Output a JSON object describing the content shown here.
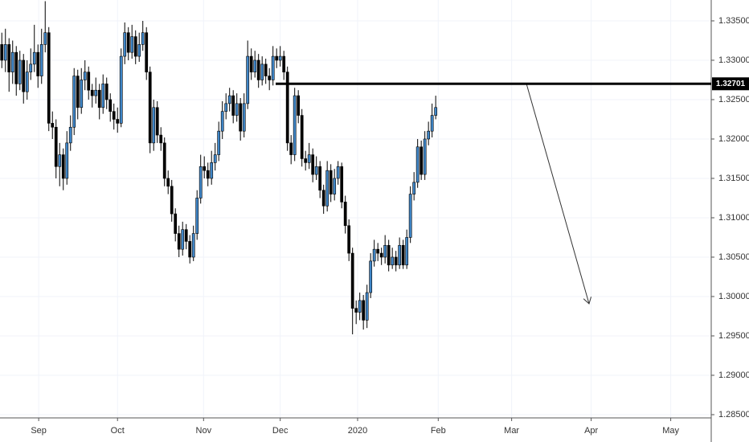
{
  "chart_data": {
    "type": "candlestick",
    "up_color": "#3f85c6",
    "down_color": "#000000",
    "grid": true,
    "xlim": [
      -0.5,
      196.2
    ],
    "ylim": [
      1.28459,
      1.33765
    ],
    "xticks": [
      {
        "value": 10.2,
        "label": "Sep"
      },
      {
        "value": 32,
        "label": "Oct"
      },
      {
        "value": 55.8,
        "label": "Nov"
      },
      {
        "value": 77,
        "label": "Dec"
      },
      {
        "value": 98.4,
        "label": "2020"
      },
      {
        "value": 120.7,
        "label": "Feb"
      },
      {
        "value": 141,
        "label": "Mar"
      },
      {
        "value": 163,
        "label": "Apr"
      },
      {
        "value": 185,
        "label": "May"
      }
    ],
    "yticks": [
      {
        "value": 1.335,
        "label": "1.33500"
      },
      {
        "value": 1.33,
        "label": "1.33000"
      },
      {
        "value": 1.325,
        "label": "1.32500"
      },
      {
        "value": 1.32,
        "label": "1.32000"
      },
      {
        "value": 1.315,
        "label": "1.31500"
      },
      {
        "value": 1.31,
        "label": "1.31000"
      },
      {
        "value": 1.305,
        "label": "1.30500"
      },
      {
        "value": 1.3,
        "label": "1.30000"
      },
      {
        "value": 1.295,
        "label": "1.29500"
      },
      {
        "value": 1.29,
        "label": "1.29000"
      },
      {
        "value": 1.285,
        "label": "1.28500"
      }
    ],
    "price_line": 1.32701,
    "x": [
      0,
      1,
      2,
      3,
      4,
      5,
      6,
      7,
      8,
      9,
      10,
      11,
      12,
      13,
      14,
      15,
      16,
      17,
      18,
      19,
      20,
      21,
      22,
      23,
      24,
      25,
      26,
      27,
      28,
      29,
      30,
      31,
      32,
      33,
      34,
      35,
      36,
      37,
      38,
      39,
      40,
      41,
      42,
      43,
      44,
      45,
      46,
      47,
      48,
      49,
      50,
      51,
      52,
      53,
      54,
      55,
      56,
      57,
      58,
      59,
      60,
      61,
      62,
      63,
      64,
      65,
      66,
      67,
      68,
      69,
      70,
      71,
      72,
      73,
      74,
      75,
      76,
      77,
      78,
      79,
      80,
      81,
      82,
      83,
      84,
      85,
      86,
      87,
      88,
      89,
      90,
      91,
      92,
      93,
      94,
      95,
      96,
      97,
      98,
      99,
      100,
      101,
      102,
      103,
      104,
      105,
      106,
      107,
      108,
      109,
      110,
      111,
      112,
      113,
      114,
      115,
      116,
      117,
      118,
      119,
      120
    ],
    "ohlc": [
      [
        1.332,
        1.3335,
        1.329,
        1.33
      ],
      [
        1.33,
        1.334,
        1.3285,
        1.332
      ],
      [
        1.332,
        1.3328,
        1.326,
        1.3285
      ],
      [
        1.3285,
        1.3325,
        1.327,
        1.331
      ],
      [
        1.331,
        1.3318,
        1.3255,
        1.327
      ],
      [
        1.327,
        1.3312,
        1.3262,
        1.33
      ],
      [
        1.33,
        1.3308,
        1.3245,
        1.326
      ],
      [
        1.326,
        1.33,
        1.325,
        1.3285
      ],
      [
        1.3285,
        1.3315,
        1.3275,
        1.3295
      ],
      [
        1.3295,
        1.3345,
        1.3285,
        1.331
      ],
      [
        1.331,
        1.332,
        1.3265,
        1.328
      ],
      [
        1.328,
        1.334,
        1.327,
        1.332
      ],
      [
        1.332,
        1.3375,
        1.331,
        1.3335
      ],
      [
        1.3335,
        1.3342,
        1.321,
        1.322
      ],
      [
        1.322,
        1.3235,
        1.32,
        1.3215
      ],
      [
        1.3215,
        1.3225,
        1.315,
        1.3165
      ],
      [
        1.3165,
        1.3195,
        1.314,
        1.318
      ],
      [
        1.318,
        1.3188,
        1.3135,
        1.315
      ],
      [
        1.315,
        1.321,
        1.3142,
        1.3195
      ],
      [
        1.3195,
        1.323,
        1.3185,
        1.3215
      ],
      [
        1.3215,
        1.329,
        1.3205,
        1.328
      ],
      [
        1.328,
        1.3288,
        1.3225,
        1.324
      ],
      [
        1.324,
        1.329,
        1.3232,
        1.3275
      ],
      [
        1.3275,
        1.33,
        1.3262,
        1.3285
      ],
      [
        1.3285,
        1.3292,
        1.325,
        1.3262
      ],
      [
        1.3262,
        1.327,
        1.324,
        1.3255
      ],
      [
        1.3255,
        1.3278,
        1.3245,
        1.3262
      ],
      [
        1.3262,
        1.327,
        1.3225,
        1.324
      ],
      [
        1.324,
        1.3282,
        1.3232,
        1.327
      ],
      [
        1.327,
        1.3278,
        1.3238,
        1.325
      ],
      [
        1.325,
        1.3258,
        1.3222,
        1.3235
      ],
      [
        1.3235,
        1.3245,
        1.3212,
        1.3225
      ],
      [
        1.3225,
        1.324,
        1.3208,
        1.322
      ],
      [
        1.322,
        1.3315,
        1.3215,
        1.3305
      ],
      [
        1.3305,
        1.3348,
        1.3295,
        1.3335
      ],
      [
        1.3335,
        1.3342,
        1.33,
        1.331
      ],
      [
        1.331,
        1.3345,
        1.3302,
        1.333
      ],
      [
        1.333,
        1.3338,
        1.3295,
        1.3305
      ],
      [
        1.3305,
        1.3335,
        1.3298,
        1.332
      ],
      [
        1.332,
        1.335,
        1.3312,
        1.3335
      ],
      [
        1.3335,
        1.3342,
        1.3275,
        1.3285
      ],
      [
        1.3285,
        1.3292,
        1.3182,
        1.3195
      ],
      [
        1.3195,
        1.325,
        1.3185,
        1.324
      ],
      [
        1.324,
        1.3248,
        1.3195,
        1.3205
      ],
      [
        1.3205,
        1.3215,
        1.3185,
        1.3195
      ],
      [
        1.3195,
        1.3202,
        1.314,
        1.315
      ],
      [
        1.315,
        1.316,
        1.313,
        1.314
      ],
      [
        1.314,
        1.3148,
        1.3095,
        1.3105
      ],
      [
        1.3105,
        1.3112,
        1.307,
        1.308
      ],
      [
        1.308,
        1.309,
        1.305,
        1.306
      ],
      [
        1.306,
        1.3095,
        1.3052,
        1.3085
      ],
      [
        1.3085,
        1.3092,
        1.306,
        1.307
      ],
      [
        1.307,
        1.3078,
        1.3042,
        1.305
      ],
      [
        1.305,
        1.309,
        1.3045,
        1.308
      ],
      [
        1.308,
        1.3135,
        1.3072,
        1.3125
      ],
      [
        1.3125,
        1.318,
        1.3118,
        1.3165
      ],
      [
        1.3165,
        1.3178,
        1.315,
        1.316
      ],
      [
        1.316,
        1.317,
        1.314,
        1.315
      ],
      [
        1.315,
        1.3185,
        1.3142,
        1.317
      ],
      [
        1.317,
        1.3195,
        1.316,
        1.318
      ],
      [
        1.318,
        1.3222,
        1.3172,
        1.321
      ],
      [
        1.321,
        1.3248,
        1.32,
        1.3235
      ],
      [
        1.3235,
        1.3258,
        1.3225,
        1.3245
      ],
      [
        1.3245,
        1.3265,
        1.3235,
        1.3255
      ],
      [
        1.3255,
        1.3262,
        1.322,
        1.323
      ],
      [
        1.323,
        1.3258,
        1.3222,
        1.3245
      ],
      [
        1.3245,
        1.3252,
        1.3198,
        1.321
      ],
      [
        1.321,
        1.3258,
        1.3202,
        1.3245
      ],
      [
        1.3245,
        1.3325,
        1.3238,
        1.3305
      ],
      [
        1.3305,
        1.3315,
        1.3275,
        1.3285
      ],
      [
        1.3285,
        1.3312,
        1.3278,
        1.33
      ],
      [
        1.33,
        1.3308,
        1.3265,
        1.3275
      ],
      [
        1.3275,
        1.3305,
        1.3268,
        1.3295
      ],
      [
        1.3295,
        1.3302,
        1.327,
        1.328
      ],
      [
        1.328,
        1.329,
        1.3262,
        1.3275
      ],
      [
        1.3275,
        1.3318,
        1.3268,
        1.3305
      ],
      [
        1.3305,
        1.3315,
        1.329,
        1.33
      ],
      [
        1.33,
        1.3318,
        1.3292,
        1.3305
      ],
      [
        1.3305,
        1.3312,
        1.3275,
        1.3285
      ],
      [
        1.3285,
        1.3292,
        1.3185,
        1.3195
      ],
      [
        1.3195,
        1.3205,
        1.3168,
        1.318
      ],
      [
        1.318,
        1.3265,
        1.3172,
        1.3255
      ],
      [
        1.3255,
        1.3262,
        1.322,
        1.323
      ],
      [
        1.323,
        1.3238,
        1.3165,
        1.3175
      ],
      [
        1.3175,
        1.3185,
        1.316,
        1.317
      ],
      [
        1.317,
        1.3195,
        1.3162,
        1.318
      ],
      [
        1.318,
        1.3188,
        1.3145,
        1.3155
      ],
      [
        1.3155,
        1.3178,
        1.3148,
        1.3165
      ],
      [
        1.3165,
        1.3172,
        1.3125,
        1.3135
      ],
      [
        1.3135,
        1.3142,
        1.3105,
        1.3115
      ],
      [
        1.3115,
        1.3172,
        1.3108,
        1.316
      ],
      [
        1.316,
        1.3168,
        1.312,
        1.313
      ],
      [
        1.313,
        1.3162,
        1.3122,
        1.315
      ],
      [
        1.315,
        1.3172,
        1.3142,
        1.3165
      ],
      [
        1.3165,
        1.317,
        1.3112,
        1.312
      ],
      [
        1.312,
        1.3128,
        1.308,
        1.309
      ],
      [
        1.309,
        1.3098,
        1.3045,
        1.3055
      ],
      [
        1.3055,
        1.3062,
        1.2952,
        1.2985
      ],
      [
        1.2985,
        1.2995,
        1.2965,
        1.298
      ],
      [
        1.298,
        1.3005,
        1.297,
        1.2995
      ],
      [
        1.2995,
        1.3002,
        1.2958,
        1.297
      ],
      [
        1.297,
        1.3015,
        1.296,
        1.3005
      ],
      [
        1.3005,
        1.3055,
        1.2998,
        1.3045
      ],
      [
        1.3045,
        1.3072,
        1.3038,
        1.306
      ],
      [
        1.306,
        1.3068,
        1.3045,
        1.3055
      ],
      [
        1.3055,
        1.3062,
        1.304,
        1.305
      ],
      [
        1.305,
        1.3078,
        1.3042,
        1.3065
      ],
      [
        1.3065,
        1.3072,
        1.3032,
        1.304
      ],
      [
        1.304,
        1.3062,
        1.3035,
        1.305
      ],
      [
        1.305,
        1.3058,
        1.3032,
        1.304
      ],
      [
        1.304,
        1.3075,
        1.3035,
        1.3065
      ],
      [
        1.3065,
        1.3072,
        1.3035,
        1.304
      ],
      [
        1.304,
        1.3085,
        1.3035,
        1.3075
      ],
      [
        1.3075,
        1.314,
        1.3068,
        1.313
      ],
      [
        1.313,
        1.3158,
        1.3122,
        1.3145
      ],
      [
        1.3145,
        1.32,
        1.3138,
        1.319
      ],
      [
        1.319,
        1.3198,
        1.3148,
        1.3155
      ],
      [
        1.3155,
        1.321,
        1.3148,
        1.32
      ],
      [
        1.32,
        1.3222,
        1.3192,
        1.321
      ],
      [
        1.321,
        1.3245,
        1.3202,
        1.323
      ],
      [
        1.323,
        1.3255,
        1.3225,
        1.324
      ]
    ]
  }
}
